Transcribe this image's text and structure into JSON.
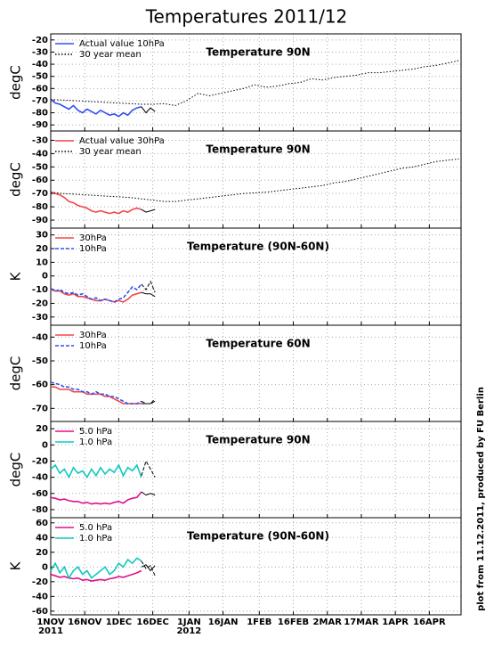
{
  "title": "Temperatures 2011/12",
  "credit": "plot from 11.12.2011, produced by FU Berlin",
  "chart_data": [
    {
      "type": "line",
      "title": "Temperature 90N",
      "y_label": "degC",
      "xlim": [
        0,
        181
      ],
      "ylim": [
        -95,
        -15
      ],
      "yticks": [
        -20,
        -30,
        -40,
        -50,
        -60,
        -70,
        -80,
        -90
      ],
      "grid": true,
      "series": [
        {
          "name": "Actual value 10hPa",
          "color": "#3050f0",
          "style": "solid",
          "x": [
            0,
            2,
            4,
            6,
            8,
            10,
            12,
            14,
            16,
            18,
            20,
            22,
            24,
            26,
            28,
            30,
            32,
            34,
            36,
            38,
            40
          ],
          "values": [
            -69,
            -72,
            -73,
            -75,
            -77,
            -74,
            -78,
            -80,
            -77,
            -79,
            -81,
            -78,
            -80,
            -82,
            -81,
            -83,
            -80,
            -82,
            -78,
            -76,
            -75
          ]
        },
        {
          "name": "30 year mean",
          "color": "#000000",
          "style": "dotted",
          "x": [
            0,
            5,
            10,
            15,
            20,
            25,
            30,
            35,
            40,
            45,
            50,
            55,
            60,
            65,
            70,
            75,
            80,
            85,
            90,
            95,
            100,
            105,
            110,
            115,
            120,
            125,
            130,
            135,
            140,
            145,
            150,
            155,
            160,
            165,
            170,
            175,
            180
          ],
          "values": [
            -69,
            -69.5,
            -70,
            -70.5,
            -71,
            -71.5,
            -72,
            -72.5,
            -73,
            -73,
            -72.5,
            -74,
            -70,
            -64,
            -66,
            -64,
            -62,
            -60,
            -57,
            -59,
            -58,
            -56,
            -55,
            -52,
            -53,
            -51,
            -50,
            -49,
            -47,
            -47,
            -46,
            -45,
            -44,
            -42,
            -41,
            -39,
            -37
          ]
        },
        {
          "color": "#000000",
          "style": "solid",
          "x": [
            40,
            42,
            44,
            46
          ],
          "values": [
            -75,
            -80,
            -76,
            -79
          ]
        }
      ]
    },
    {
      "type": "line",
      "title": "Temperature 90N",
      "y_label": "degC",
      "xlim": [
        0,
        181
      ],
      "ylim": [
        -96,
        -23
      ],
      "yticks": [
        -30,
        -40,
        -50,
        -60,
        -70,
        -80,
        -90
      ],
      "grid": true,
      "series": [
        {
          "name": "Actual value 30hPa",
          "color": "#f04848",
          "style": "solid",
          "x": [
            0,
            2,
            4,
            6,
            8,
            10,
            12,
            14,
            16,
            18,
            20,
            22,
            24,
            26,
            28,
            30,
            32,
            34,
            36,
            38,
            40
          ],
          "values": [
            -69,
            -70,
            -71,
            -73,
            -76,
            -77,
            -79,
            -80,
            -81,
            -83,
            -84,
            -83,
            -84,
            -85,
            -84,
            -85,
            -83,
            -84,
            -82,
            -81,
            -82
          ]
        },
        {
          "name": "30 year mean",
          "color": "#000000",
          "style": "dotted",
          "x": [
            0,
            5,
            10,
            15,
            20,
            25,
            30,
            35,
            40,
            45,
            50,
            55,
            60,
            65,
            70,
            75,
            80,
            85,
            90,
            95,
            100,
            105,
            110,
            115,
            120,
            125,
            130,
            135,
            140,
            145,
            150,
            155,
            160,
            165,
            170,
            175,
            180
          ],
          "values": [
            -69,
            -70,
            -70.5,
            -71,
            -71.5,
            -72,
            -72.5,
            -73,
            -74,
            -75,
            -76,
            -76,
            -75,
            -74,
            -73,
            -72,
            -71,
            -70,
            -69.5,
            -69,
            -68,
            -67,
            -66,
            -65,
            -64,
            -62,
            -61,
            -59,
            -57,
            -55,
            -53,
            -51,
            -50,
            -48,
            -46,
            -45,
            -44
          ]
        },
        {
          "color": "#000000",
          "style": "solid",
          "x": [
            40,
            42,
            44,
            46
          ],
          "values": [
            -82,
            -84,
            -83,
            -82
          ]
        }
      ]
    },
    {
      "type": "line",
      "title": "Temperature (90N-60N)",
      "y_label": "K",
      "xlim": [
        0,
        181
      ],
      "ylim": [
        -36,
        35
      ],
      "yticks": [
        30,
        20,
        10,
        0,
        -10,
        -20,
        -30
      ],
      "grid": true,
      "series": [
        {
          "name": "30hPa",
          "color": "#f04848",
          "style": "solid",
          "x": [
            0,
            2,
            4,
            6,
            8,
            10,
            12,
            14,
            16,
            18,
            20,
            22,
            24,
            26,
            28,
            30,
            32,
            34,
            36,
            38,
            40
          ],
          "values": [
            -10,
            -11,
            -11,
            -13,
            -14,
            -13,
            -15,
            -15,
            -16,
            -17,
            -18,
            -18,
            -17,
            -18,
            -19,
            -18,
            -19,
            -17,
            -14,
            -13,
            -12
          ]
        },
        {
          "name": "10hPa",
          "color": "#3050f0",
          "style": "dashed",
          "x": [
            0,
            2,
            4,
            6,
            8,
            10,
            12,
            14,
            16,
            18,
            20,
            22,
            24,
            26,
            28,
            30,
            32,
            34,
            36,
            38,
            40
          ],
          "values": [
            -9,
            -11,
            -10,
            -12,
            -13,
            -12,
            -14,
            -13,
            -15,
            -17,
            -16,
            -18,
            -17,
            -18,
            -19,
            -17,
            -16,
            -12,
            -8,
            -10,
            -6
          ]
        },
        {
          "color": "#000000",
          "style": "solid",
          "x": [
            40,
            42,
            44,
            46
          ],
          "values": [
            -12,
            -13,
            -13,
            -15
          ]
        },
        {
          "color": "#000000",
          "style": "dashed",
          "x": [
            40,
            42,
            44,
            46
          ],
          "values": [
            -6,
            -10,
            -4,
            -12
          ]
        }
      ]
    },
    {
      "type": "line",
      "title": "Temperature 60N",
      "y_label": "degC",
      "xlim": [
        0,
        181
      ],
      "ylim": [
        -75.5,
        -35
      ],
      "yticks": [
        -40,
        -50,
        -60,
        -70
      ],
      "grid": true,
      "series": [
        {
          "name": "30hPa",
          "color": "#f04848",
          "style": "solid",
          "x": [
            0,
            2,
            4,
            6,
            8,
            10,
            12,
            14,
            16,
            18,
            20,
            22,
            24,
            26,
            28,
            30,
            32,
            34,
            36,
            38,
            40
          ],
          "values": [
            -61,
            -61,
            -62,
            -62,
            -62,
            -63,
            -63,
            -63,
            -64,
            -64,
            -64,
            -64,
            -65,
            -65,
            -66,
            -67,
            -68,
            -68,
            -68,
            -68,
            -68
          ]
        },
        {
          "name": "10hPa",
          "color": "#3050f0",
          "style": "dashed",
          "x": [
            0,
            2,
            4,
            6,
            8,
            10,
            12,
            14,
            16,
            18,
            20,
            22,
            24,
            26,
            28,
            30,
            32,
            34,
            36,
            38,
            40
          ],
          "values": [
            -59,
            -59.5,
            -60,
            -61,
            -61,
            -62,
            -62,
            -63,
            -63,
            -64,
            -63,
            -64,
            -64,
            -65,
            -65,
            -66,
            -67,
            -68,
            -68,
            -68,
            -67
          ]
        },
        {
          "color": "#000000",
          "style": "solid",
          "x": [
            40,
            42,
            44,
            46
          ],
          "values": [
            -68,
            -68,
            -68,
            -67
          ]
        },
        {
          "color": "#000000",
          "style": "dashed",
          "x": [
            40,
            42,
            44,
            46
          ],
          "values": [
            -67,
            -68,
            -68,
            -66
          ]
        }
      ]
    },
    {
      "type": "line",
      "title": "Temperature 90N",
      "y_label": "degC",
      "xlim": [
        0,
        181
      ],
      "ylim": [
        -90,
        29
      ],
      "yticks": [
        20,
        0,
        -20,
        -40,
        -60,
        -80
      ],
      "grid": true,
      "series": [
        {
          "name": "5.0 hPa",
          "color": "#e0108a",
          "style": "solid",
          "x": [
            0,
            2,
            4,
            6,
            8,
            10,
            12,
            14,
            16,
            18,
            20,
            22,
            24,
            26,
            28,
            30,
            32,
            34,
            36,
            38,
            40
          ],
          "values": [
            -65,
            -66,
            -68,
            -67,
            -69,
            -70,
            -70,
            -72,
            -71,
            -73,
            -72,
            -73,
            -72,
            -73,
            -71,
            -70,
            -72,
            -68,
            -66,
            -65,
            -58
          ]
        },
        {
          "name": "1.0 hPa",
          "color": "#10c8c0",
          "style": "solid",
          "x": [
            0,
            2,
            4,
            6,
            8,
            10,
            12,
            14,
            16,
            18,
            20,
            22,
            24,
            26,
            28,
            30,
            32,
            34,
            36,
            38,
            40
          ],
          "values": [
            -30,
            -25,
            -35,
            -30,
            -40,
            -28,
            -35,
            -32,
            -40,
            -30,
            -38,
            -28,
            -36,
            -30,
            -34,
            -25,
            -38,
            -28,
            -32,
            -25,
            -40
          ]
        },
        {
          "color": "#000000",
          "style": "solid",
          "x": [
            40,
            42,
            44,
            46
          ],
          "values": [
            -58,
            -62,
            -60,
            -62
          ]
        },
        {
          "color": "#000000",
          "style": "dashed",
          "x": [
            40,
            42,
            44,
            46
          ],
          "values": [
            -38,
            -20,
            -30,
            -40
          ]
        }
      ]
    },
    {
      "type": "line",
      "title": "Temperature (90N-60N)",
      "y_label": "K",
      "xlim": [
        0,
        181
      ],
      "ylim": [
        -65,
        67
      ],
      "yticks": [
        60,
        40,
        20,
        0,
        -20,
        -40,
        -60
      ],
      "grid": true,
      "xticks": [
        {
          "value": 0,
          "label": "1NOV"
        },
        {
          "value": 15,
          "label": "16NOV"
        },
        {
          "value": 30,
          "label": "1DEC"
        },
        {
          "value": 45,
          "label": "16DEC"
        },
        {
          "value": 61,
          "label": "1JAN"
        },
        {
          "value": 76,
          "label": "16JAN"
        },
        {
          "value": 92,
          "label": "1FEB"
        },
        {
          "value": 107,
          "label": "16FEB"
        },
        {
          "value": 122,
          "label": "2MAR"
        },
        {
          "value": 137,
          "label": "17MAR"
        },
        {
          "value": 152,
          "label": "1APR"
        },
        {
          "value": 167,
          "label": "16APR"
        }
      ],
      "xtick_years": [
        {
          "value": 0,
          "label": "2011"
        },
        {
          "value": 61,
          "label": "2012"
        }
      ],
      "series": [
        {
          "name": "5.0 hPa",
          "color": "#e0108a",
          "style": "solid",
          "x": [
            0,
            2,
            4,
            6,
            8,
            10,
            12,
            14,
            16,
            18,
            20,
            22,
            24,
            26,
            28,
            30,
            32,
            34,
            36,
            38,
            40
          ],
          "values": [
            -10,
            -12,
            -14,
            -13,
            -15,
            -16,
            -15,
            -18,
            -17,
            -19,
            -18,
            -17,
            -18,
            -16,
            -15,
            -13,
            -14,
            -12,
            -10,
            -8,
            -5
          ]
        },
        {
          "name": "1.0 hPa",
          "color": "#10c8c0",
          "style": "solid",
          "x": [
            0,
            2,
            4,
            6,
            8,
            10,
            12,
            14,
            16,
            18,
            20,
            22,
            24,
            26,
            28,
            30,
            32,
            34,
            36,
            38,
            40
          ],
          "values": [
            -5,
            5,
            -8,
            0,
            -15,
            -5,
            0,
            -10,
            -5,
            -15,
            -10,
            -5,
            0,
            -10,
            -5,
            5,
            0,
            10,
            5,
            12,
            8
          ]
        },
        {
          "color": "#000000",
          "style": "solid",
          "x": [
            40,
            42,
            44,
            46
          ],
          "values": [
            0,
            3,
            -5,
            2
          ]
        },
        {
          "color": "#000000",
          "style": "dashed",
          "x": [
            40,
            42,
            44,
            46
          ],
          "values": [
            8,
            -2,
            2,
            -12
          ]
        }
      ]
    }
  ]
}
